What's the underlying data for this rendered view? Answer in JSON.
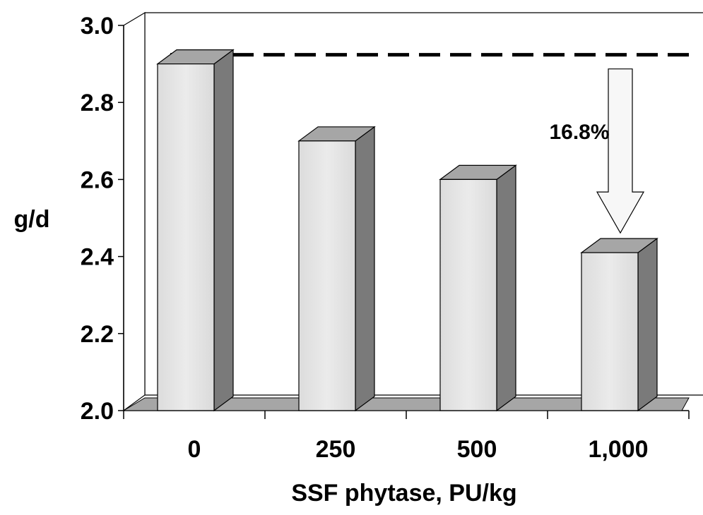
{
  "chart_data": {
    "type": "bar",
    "title": "",
    "xlabel": "SSF phytase, PU/kg",
    "ylabel": "g/d",
    "categories": [
      "0",
      "250",
      "500",
      "1,000"
    ],
    "values": [
      2.9,
      2.7,
      2.6,
      2.41
    ],
    "ylim": [
      2.0,
      3.0
    ],
    "yticks": [
      "2.0",
      "2.2",
      "2.4",
      "2.6",
      "2.8",
      "3.0"
    ],
    "grid": false,
    "legend": "none",
    "reference_line": {
      "value": 2.92,
      "style": "dashed"
    },
    "annotation": {
      "text": "16.8%",
      "arrow": "down"
    },
    "colors": {
      "bar_front": "#e6e6e6",
      "bar_side": "#7a7a7a",
      "bar_top": "#a6a6a6",
      "floor": "#a6a6a6",
      "arrow_fill": "#f7f7f7"
    }
  }
}
